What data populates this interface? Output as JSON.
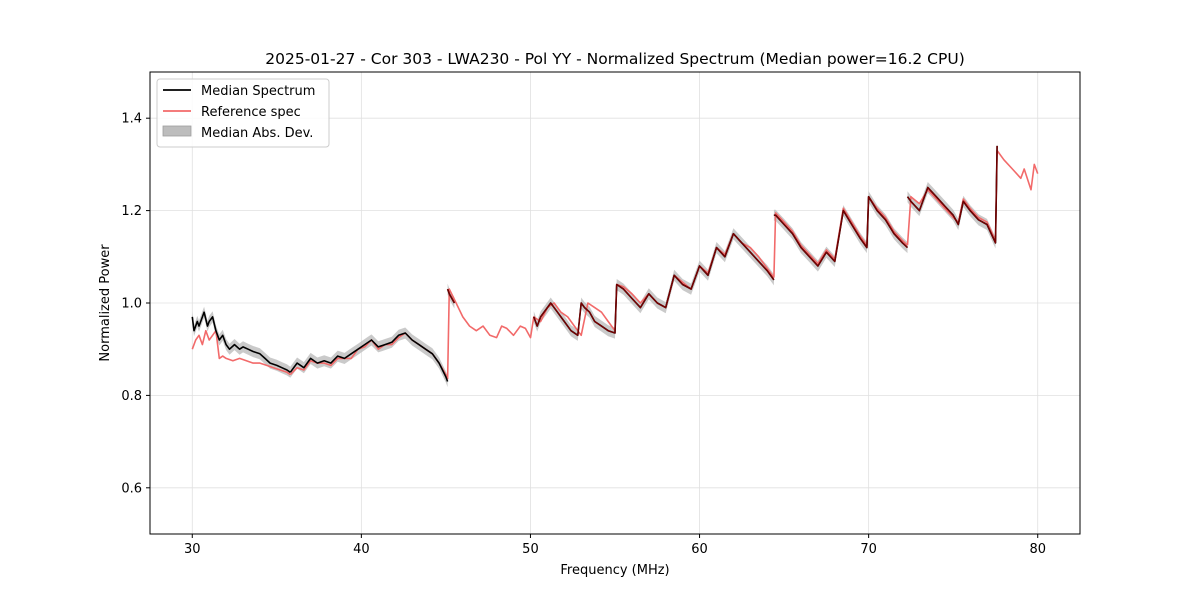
{
  "chart_data": {
    "type": "line",
    "title": "2025-01-27 - Cor 303 - LWA230 - Pol YY - Normalized Spectrum (Median power=16.2 CPU)",
    "xlabel": "Frequency (MHz)",
    "ylabel": "Normalized Power",
    "xlim": [
      27.5,
      82.5
    ],
    "ylim": [
      0.5,
      1.5
    ],
    "xticks": [
      30,
      40,
      50,
      60,
      70,
      80
    ],
    "xtick_labels": [
      "30",
      "40",
      "50",
      "60",
      "70",
      "80"
    ],
    "yticks": [
      0.6,
      0.8,
      1.0,
      1.2,
      1.4
    ],
    "ytick_labels": [
      "0.6",
      "0.8",
      "1.0",
      "1.2",
      "1.4"
    ],
    "grid": true,
    "legend_position": "top-left",
    "legend": [
      "Median Spectrum",
      "Reference spec",
      "Median Abs. Dev."
    ],
    "colors": {
      "median": "#000000",
      "reference": "#f26a6a",
      "overlap": "#8b0000",
      "mad_fill": "#bdbdbd",
      "grid": "#e0e0e0"
    },
    "series": [
      {
        "name": "Median Spectrum",
        "segments": [
          {
            "x": [
              30.0,
              30.1,
              30.3,
              30.4,
              30.6,
              30.7,
              30.9,
              31.0,
              31.2,
              31.4,
              31.6,
              31.8,
              32.0,
              32.2,
              32.5,
              32.8,
              33.0,
              33.3,
              33.6,
              34.0,
              34.3,
              34.6,
              35.0,
              35.3,
              35.6,
              35.8
            ],
            "y": [
              0.97,
              0.94,
              0.96,
              0.95,
              0.97,
              0.98,
              0.95,
              0.96,
              0.97,
              0.94,
              0.92,
              0.93,
              0.91,
              0.9,
              0.91,
              0.9,
              0.905,
              0.9,
              0.895,
              0.89,
              0.88,
              0.87,
              0.865,
              0.86,
              0.855,
              0.85
            ]
          },
          {
            "x": [
              35.8,
              36.2,
              36.6,
              37.0,
              37.4,
              37.8,
              38.2,
              38.6,
              39.0,
              39.4,
              39.8,
              40.2,
              40.6,
              41.0,
              41.4,
              41.8,
              42.2,
              42.6,
              43.0,
              43.4,
              43.8,
              44.2,
              44.6,
              45.0,
              45.1
            ],
            "y": [
              0.85,
              0.87,
              0.86,
              0.88,
              0.87,
              0.875,
              0.87,
              0.885,
              0.88,
              0.89,
              0.9,
              0.91,
              0.92,
              0.905,
              0.91,
              0.915,
              0.93,
              0.935,
              0.92,
              0.91,
              0.9,
              0.89,
              0.87,
              0.84,
              0.83
            ]
          },
          {
            "x": [
              45.1,
              45.2,
              45.5
            ],
            "y": [
              1.03,
              1.02,
              1.0
            ]
          },
          {
            "x": [
              50.2,
              50.4,
              50.6,
              50.8,
              51.0,
              51.2,
              51.6,
              52.0,
              52.4,
              52.8,
              53.0,
              53.2,
              53.5,
              53.8,
              54.2,
              54.6,
              55.0,
              55.1,
              55.5,
              56.0,
              56.5,
              57.0,
              57.5,
              58.0,
              58.5,
              59.0,
              59.5,
              60.0,
              60.5,
              61.0,
              61.5,
              62.0,
              62.5,
              63.0,
              63.5,
              64.0,
              64.4
            ],
            "y": [
              0.97,
              0.95,
              0.97,
              0.98,
              0.99,
              1.0,
              0.98,
              0.96,
              0.94,
              0.93,
              1.0,
              0.99,
              0.98,
              0.96,
              0.95,
              0.94,
              0.935,
              1.04,
              1.03,
              1.01,
              0.99,
              1.02,
              1.0,
              0.99,
              1.06,
              1.04,
              1.03,
              1.08,
              1.06,
              1.12,
              1.1,
              1.15,
              1.13,
              1.11,
              1.09,
              1.07,
              1.05
            ]
          },
          {
            "x": [
              64.4,
              64.5,
              65.0,
              65.5,
              66.0,
              66.5,
              67.0,
              67.5,
              68.0,
              68.5,
              69.0,
              69.5,
              69.9,
              70.0,
              70.5,
              71.0,
              71.5,
              72.0,
              72.3
            ],
            "y": [
              1.19,
              1.19,
              1.17,
              1.15,
              1.12,
              1.1,
              1.08,
              1.11,
              1.09,
              1.2,
              1.17,
              1.14,
              1.12,
              1.23,
              1.2,
              1.18,
              1.15,
              1.13,
              1.12
            ]
          },
          {
            "x": [
              72.3,
              72.5,
              73.0,
              73.5,
              74.0,
              74.5,
              75.0,
              75.3,
              75.6,
              76.0,
              76.5,
              77.0,
              77.5,
              77.6
            ],
            "y": [
              1.23,
              1.22,
              1.2,
              1.25,
              1.23,
              1.21,
              1.19,
              1.17,
              1.22,
              1.2,
              1.18,
              1.17,
              1.13,
              1.34
            ]
          }
        ]
      },
      {
        "name": "Reference spec",
        "segments": [
          {
            "x": [
              30.0,
              30.2,
              30.4,
              30.6,
              30.8,
              31.0,
              31.2,
              31.4,
              31.6,
              31.8,
              32.0,
              32.4,
              32.8,
              33.2,
              33.6,
              34.0,
              34.4,
              34.8,
              35.2,
              35.6,
              35.8
            ],
            "y": [
              0.9,
              0.92,
              0.93,
              0.91,
              0.94,
              0.92,
              0.93,
              0.94,
              0.88,
              0.885,
              0.88,
              0.875,
              0.88,
              0.875,
              0.87,
              0.87,
              0.865,
              0.86,
              0.855,
              0.85,
              0.845
            ]
          },
          {
            "x": [
              35.8,
              36.2,
              36.6,
              37.0,
              37.4,
              37.8,
              38.2,
              38.6,
              39.0,
              39.4,
              39.8,
              40.2,
              40.6,
              41.0,
              41.4,
              41.8,
              42.2,
              42.6,
              43.0,
              43.4,
              43.8,
              44.2,
              44.6,
              45.0,
              45.1
            ],
            "y": [
              0.845,
              0.86,
              0.855,
              0.875,
              0.87,
              0.87,
              0.865,
              0.88,
              0.88,
              0.88,
              0.9,
              0.905,
              0.92,
              0.9,
              0.91,
              0.91,
              0.925,
              0.935,
              0.92,
              0.91,
              0.9,
              0.89,
              0.87,
              0.845,
              0.835
            ]
          },
          {
            "x": [
              45.1,
              45.2,
              45.6,
              46.0,
              46.4,
              46.8,
              47.2,
              47.6,
              48.0,
              48.3,
              48.6,
              49.0,
              49.4,
              49.7,
              50.0,
              50.2,
              50.6,
              51.0,
              51.4,
              51.8,
              52.2,
              52.6,
              53.0,
              53.4,
              53.8,
              54.2,
              54.6,
              55.0,
              55.1,
              55.5,
              56.0,
              56.5,
              57.0,
              57.5,
              58.0,
              58.5,
              59.0,
              59.5,
              60.0,
              60.5,
              61.0,
              61.5,
              62.0,
              62.5,
              63.0,
              63.5,
              64.0,
              64.4
            ],
            "y": [
              0.835,
              1.03,
              1.0,
              0.97,
              0.95,
              0.94,
              0.95,
              0.93,
              0.925,
              0.95,
              0.945,
              0.93,
              0.95,
              0.945,
              0.925,
              0.97,
              0.96,
              0.99,
              1.0,
              0.98,
              0.97,
              0.95,
              0.93,
              1.0,
              0.99,
              0.98,
              0.96,
              0.94,
              1.04,
              1.035,
              1.02,
              1.0,
              1.02,
              1.0,
              0.99,
              1.06,
              1.045,
              1.03,
              1.08,
              1.065,
              1.12,
              1.105,
              1.15,
              1.13,
              1.12,
              1.1,
              1.075,
              1.055
            ]
          },
          {
            "x": [
              64.4,
              64.5,
              65.0,
              65.5,
              66.0,
              66.5,
              67.0,
              67.5,
              68.0,
              68.5,
              69.0,
              69.5,
              69.9,
              70.0,
              70.5,
              71.0,
              71.5,
              72.0,
              72.3
            ],
            "y": [
              1.055,
              1.195,
              1.175,
              1.155,
              1.125,
              1.105,
              1.085,
              1.115,
              1.095,
              1.205,
              1.175,
              1.145,
              1.125,
              1.23,
              1.205,
              1.185,
              1.155,
              1.135,
              1.125
            ]
          },
          {
            "x": [
              72.3,
              72.5,
              73.0,
              73.5,
              74.0,
              74.5,
              75.0,
              75.3,
              75.6,
              76.0,
              76.5,
              77.0,
              77.5,
              77.6,
              78.0,
              78.5,
              79.0,
              79.2,
              79.6,
              79.8,
              80.0
            ],
            "y": [
              1.125,
              1.23,
              1.215,
              1.245,
              1.225,
              1.205,
              1.185,
              1.175,
              1.225,
              1.205,
              1.185,
              1.175,
              1.135,
              1.33,
              1.31,
              1.29,
              1.27,
              1.29,
              1.245,
              1.3,
              1.28
            ]
          }
        ]
      }
    ],
    "mad_halfwidth": 0.012
  }
}
